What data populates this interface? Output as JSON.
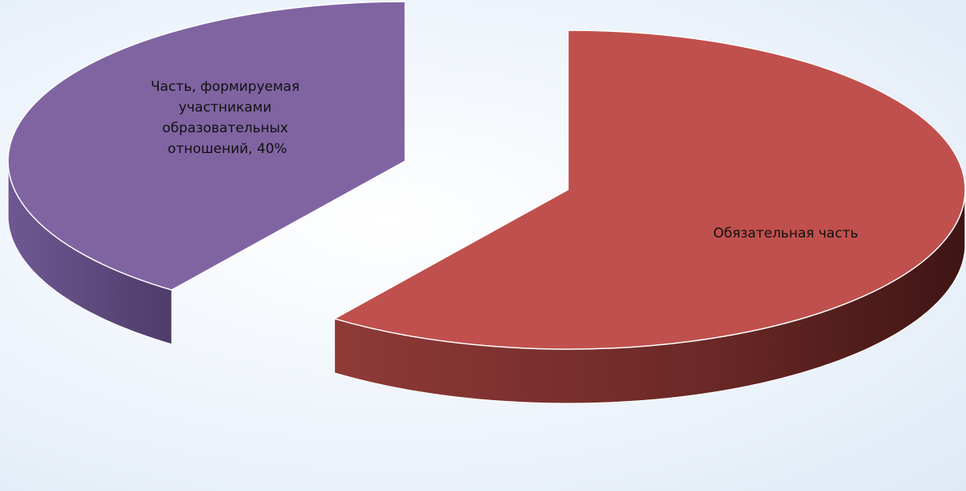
{
  "chart_data": {
    "type": "pie",
    "style": "3d-exploded",
    "categories": [
      "Обязательная часть",
      "Часть, формируемая участниками образовательных отношений"
    ],
    "values": [
      60,
      40
    ],
    "data_labels": [
      [
        "Обязательная часть"
      ],
      [
        "Часть, формируемая",
        "участниками",
        "образовательных",
        "отношений, 40%"
      ]
    ],
    "colors": [
      "#c0504d",
      "#8064a2"
    ],
    "side_colors": [
      "#6e2a28",
      "#53416f"
    ],
    "legend": "none"
  }
}
